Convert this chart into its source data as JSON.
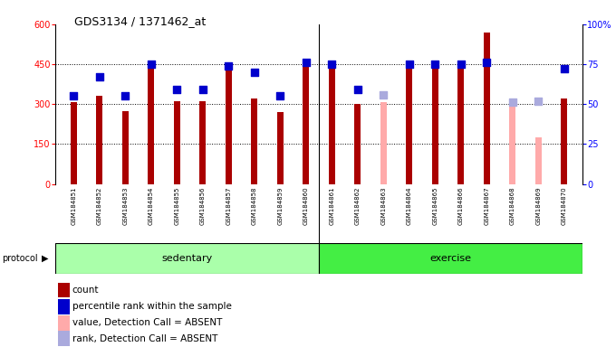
{
  "title": "GDS3134 / 1371462_at",
  "samples": [
    "GSM184851",
    "GSM184852",
    "GSM184853",
    "GSM184854",
    "GSM184855",
    "GSM184856",
    "GSM184857",
    "GSM184858",
    "GSM184859",
    "GSM184860",
    "GSM184861",
    "GSM184862",
    "GSM184863",
    "GSM184864",
    "GSM184865",
    "GSM184866",
    "GSM184867",
    "GSM184868",
    "GSM184869",
    "GSM184870"
  ],
  "bar_values": [
    308,
    332,
    272,
    448,
    312,
    312,
    440,
    322,
    270,
    456,
    448,
    300,
    308,
    440,
    440,
    440,
    570,
    300,
    175,
    320
  ],
  "bar_colors": [
    "#aa0000",
    "#aa0000",
    "#aa0000",
    "#aa0000",
    "#aa0000",
    "#aa0000",
    "#aa0000",
    "#aa0000",
    "#aa0000",
    "#aa0000",
    "#aa0000",
    "#aa0000",
    "#ffaaaa",
    "#aa0000",
    "#aa0000",
    "#aa0000",
    "#aa0000",
    "#ffaaaa",
    "#ffaaaa",
    "#aa0000"
  ],
  "rank_values_pct": [
    55,
    67,
    55,
    75,
    59,
    59,
    74,
    70,
    55,
    76,
    75,
    59,
    56,
    75,
    75,
    75,
    76,
    51,
    52,
    72
  ],
  "rank_colors": [
    "#0000cc",
    "#0000cc",
    "#0000cc",
    "#0000cc",
    "#0000cc",
    "#0000cc",
    "#0000cc",
    "#0000cc",
    "#0000cc",
    "#0000cc",
    "#0000cc",
    "#0000cc",
    "#aaaadd",
    "#0000cc",
    "#0000cc",
    "#0000cc",
    "#0000cc",
    "#aaaadd",
    "#aaaadd",
    "#0000cc"
  ],
  "sedentary_count": 10,
  "exercise_count": 10,
  "ylim_left": [
    0,
    600
  ],
  "ylim_right": [
    0,
    100
  ],
  "yticks_left": [
    0,
    150,
    300,
    450,
    600
  ],
  "yticks_right": [
    0,
    25,
    50,
    75,
    100
  ],
  "hlines": [
    150,
    300,
    450
  ],
  "sed_color": "#aaffaa",
  "ex_color": "#44ee44",
  "legend_items": [
    {
      "label": "count",
      "color": "#aa0000"
    },
    {
      "label": "percentile rank within the sample",
      "color": "#0000cc"
    },
    {
      "label": "value, Detection Call = ABSENT",
      "color": "#ffaaaa"
    },
    {
      "label": "rank, Detection Call = ABSENT",
      "color": "#aaaadd"
    }
  ]
}
